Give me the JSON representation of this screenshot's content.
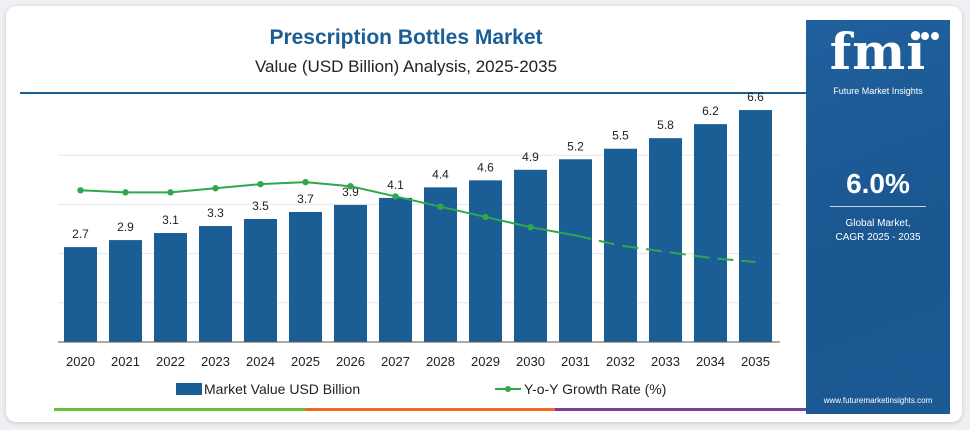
{
  "title": "Prescription Bottles Market",
  "subtitle": "Value (USD Billion) Analysis, 2025-2035",
  "colors": {
    "bar": "#1b5e95",
    "line": "#2ea84a",
    "accent_panel": "#1d5c98",
    "strip": [
      "#6cbf3b",
      "#ef6a2a",
      "#7a3f98"
    ]
  },
  "chart_data": {
    "type": "bar",
    "categories": [
      "2020",
      "2021",
      "2022",
      "2023",
      "2024",
      "2025",
      "2026",
      "2027",
      "2028",
      "2029",
      "2030",
      "2031",
      "2032",
      "2033",
      "2034",
      "2035"
    ],
    "series": [
      {
        "name": "Market Value USD Billion",
        "type": "bar",
        "values": [
          2.7,
          2.9,
          3.1,
          3.3,
          3.5,
          3.7,
          3.9,
          4.1,
          4.4,
          4.6,
          4.9,
          5.2,
          5.5,
          5.8,
          6.2,
          6.6
        ]
      },
      {
        "name": "Y-o-Y Growth Rate (%)",
        "type": "line",
        "values": [
          7.4,
          7.3,
          7.3,
          7.5,
          7.7,
          7.8,
          7.6,
          7.1,
          6.6,
          6.1,
          5.6,
          5.2,
          4.7,
          4.4,
          4.1,
          3.9
        ],
        "dashed_from_index": 11
      }
    ],
    "ylim_bar": [
      0,
      7
    ],
    "ylim_line": [
      0,
      12
    ],
    "grid": true,
    "legend_position": "bottom"
  },
  "legend": {
    "bar_label": "Market Value USD Billion",
    "line_label": "Y-o-Y Growth Rate (%)"
  },
  "panel": {
    "logo": "fmi",
    "logo_sub": "Future Market Insights",
    "cagr_value": "6.0%",
    "cagr_label_line1": "Global Market,",
    "cagr_label_line2": "CAGR 2025 - 2035",
    "website": "www.futuremarketinsights.com"
  }
}
